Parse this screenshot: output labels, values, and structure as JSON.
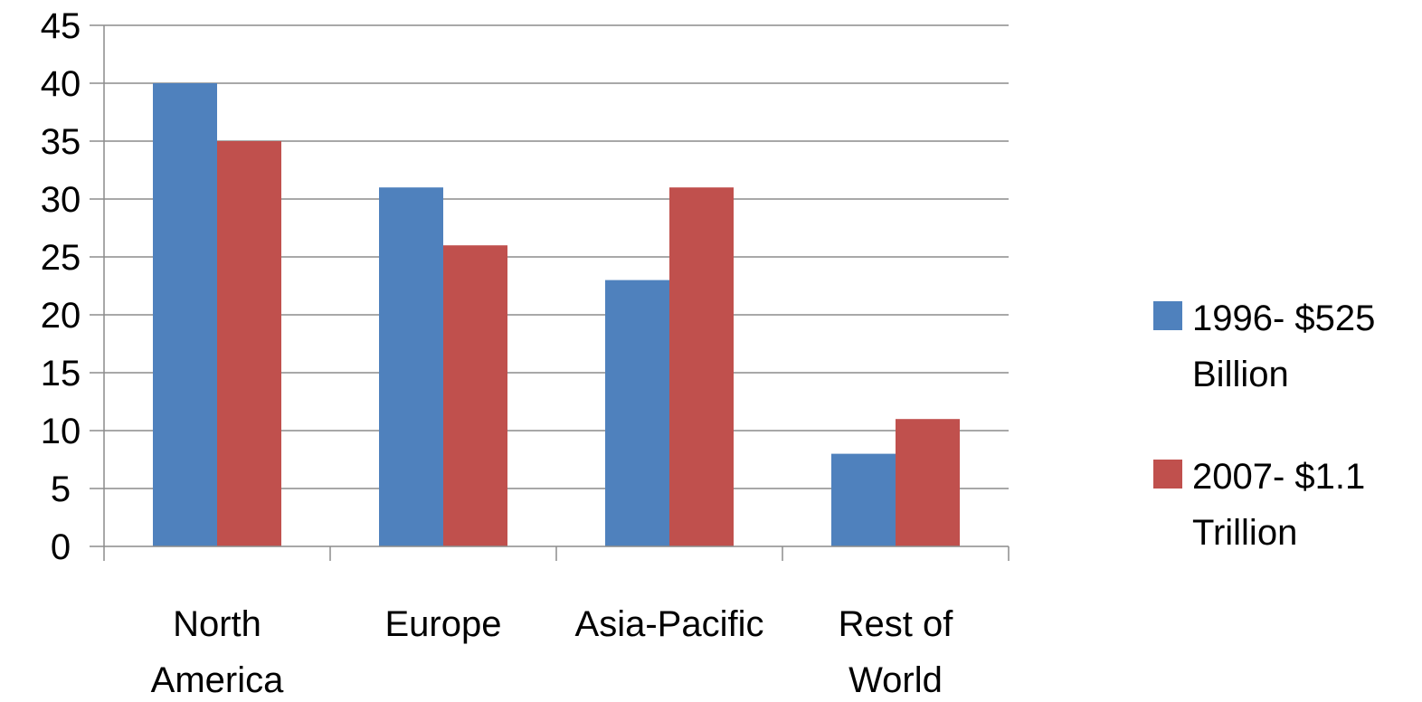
{
  "chart_data": {
    "type": "bar",
    "categories": [
      [
        "North",
        "America"
      ],
      [
        "Europe"
      ],
      [
        "Asia-Pacific"
      ],
      [
        "Rest of",
        "World"
      ]
    ],
    "series": [
      {
        "name": [
          "1996- $525",
          "Billion"
        ],
        "color": "#4F81BD",
        "values": [
          40,
          31,
          23,
          8
        ]
      },
      {
        "name": [
          "2007- $1.1",
          "Trillion"
        ],
        "color": "#C0504D",
        "values": [
          35,
          26,
          31,
          11
        ]
      }
    ],
    "ylim": [
      0,
      45
    ],
    "yticks": [
      0,
      5,
      10,
      15,
      20,
      25,
      30,
      35,
      40,
      45
    ],
    "grid": true,
    "legend_position": "right",
    "title": "",
    "xlabel": "",
    "ylabel": ""
  }
}
